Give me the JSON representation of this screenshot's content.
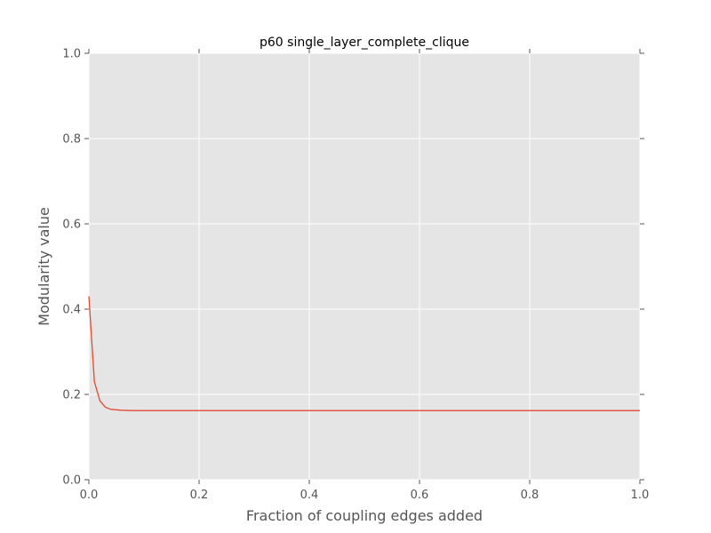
{
  "chart_data": {
    "type": "line",
    "title": "p60 single_layer_complete_clique",
    "xlabel": "Fraction of coupling edges added",
    "ylabel": "Modularity value",
    "xlim": [
      0.0,
      1.0
    ],
    "ylim": [
      0.0,
      1.0
    ],
    "xticks": [
      "0.0",
      "0.2",
      "0.4",
      "0.6",
      "0.8",
      "1.0"
    ],
    "yticks": [
      "0.0",
      "0.2",
      "0.4",
      "0.6",
      "0.8",
      "1.0"
    ],
    "grid": true,
    "colors": {
      "background": "#e5e5e5",
      "grid": "#ffffff",
      "line": "#e24a33"
    },
    "series": [
      {
        "x": [
          0.0,
          0.01,
          0.02,
          0.03,
          0.04,
          0.05,
          0.06,
          0.08,
          0.1,
          0.2,
          0.3,
          0.4,
          0.5,
          0.6,
          0.7,
          0.8,
          0.9,
          1.0
        ],
        "y": [
          0.43,
          0.23,
          0.185,
          0.17,
          0.165,
          0.164,
          0.163,
          0.162,
          0.162,
          0.162,
          0.162,
          0.162,
          0.162,
          0.162,
          0.162,
          0.162,
          0.162,
          0.162
        ]
      }
    ]
  }
}
